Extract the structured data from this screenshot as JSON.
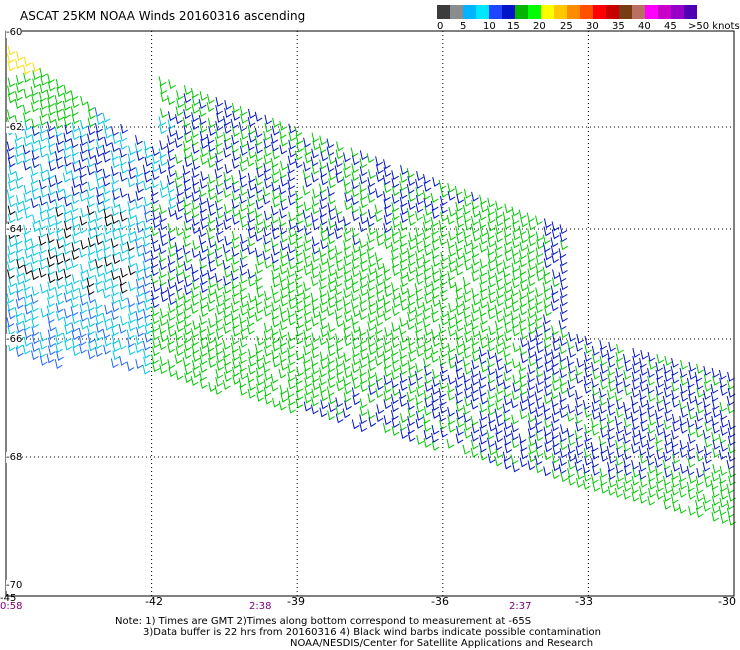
{
  "title": "ASCAT 25KM NOAA Winds 20160316 ascending",
  "colorbar": {
    "colors": [
      "#3c3c3c",
      "#8c8c8c",
      "#00b4ff",
      "#00e6ff",
      "#1e46ff",
      "#0014c8",
      "#00b400",
      "#00ff00",
      "#ffff00",
      "#ffc800",
      "#ff8c00",
      "#ff5000",
      "#ff0000",
      "#c80000",
      "#783c14",
      "#ba7060",
      "#ff00ff",
      "#c800c8",
      "#9600c8",
      "#5000b4"
    ],
    "labels": [
      "0",
      "5",
      "10",
      "15",
      "20",
      "25",
      "30",
      "35",
      "40",
      "45",
      ">50 knots"
    ]
  },
  "axes": {
    "lat_labels": [
      "-60",
      "-62",
      "-64",
      "-66",
      "-68",
      "-70"
    ],
    "lon_labels": [
      "-45",
      "-42",
      "-39",
      "-36",
      "-33",
      "-30"
    ],
    "lon_values": [
      -45,
      -42,
      -39,
      -36,
      -33,
      -30
    ],
    "lat_values": [
      -60,
      -62,
      -64,
      -66,
      -68,
      -70
    ],
    "time_labels": [
      "0:58",
      "2:38",
      "2:37"
    ],
    "grid": "dotted"
  },
  "notes": {
    "line1": "Note: 1) Times are GMT 2)Times along bottom correspond to measurement at -65S",
    "line2": "3)Data buffer is 22 hrs from 20160316 4) Black wind barbs indicate possible contamination",
    "line3": "NOAA/NESDIS/Center for Satellite Applications and Research"
  }
}
